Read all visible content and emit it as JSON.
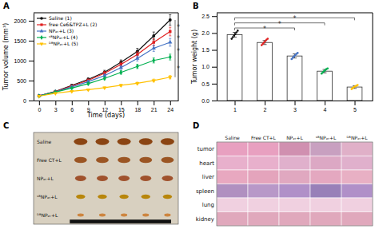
{
  "chart_data": [
    {
      "type": "line",
      "title": "A",
      "xlabel": "Time (days)",
      "ylabel": "Tumor volume (mm³)",
      "xlim": [
        -1,
        25.5
      ],
      "ylim": [
        0,
        2200
      ],
      "xticks": [
        0,
        3,
        6,
        9,
        12,
        15,
        18,
        21,
        24
      ],
      "yticks": [
        0,
        500,
        1000,
        1500,
        2000
      ],
      "legend": "upper left",
      "series": [
        {
          "name": "Saline (1)",
          "color": "#111111",
          "marker": "circle",
          "x": [
            0,
            3,
            6,
            9,
            12,
            15,
            18,
            21,
            24
          ],
          "values": [
            120,
            230,
            380,
            530,
            710,
            960,
            1230,
            1620,
            2020
          ],
          "errors": [
            8,
            18,
            28,
            38,
            48,
            58,
            78,
            98,
            130
          ]
        },
        {
          "name": "free Ce6&TPZ+L (2)",
          "color": "#e02020",
          "marker": "square",
          "x": [
            0,
            3,
            6,
            9,
            12,
            15,
            18,
            21,
            24
          ],
          "values": [
            118,
            222,
            365,
            505,
            685,
            905,
            1155,
            1460,
            1730
          ],
          "errors": [
            8,
            18,
            28,
            38,
            43,
            53,
            68,
            88,
            108
          ]
        },
        {
          "name": "NPₑₜ+L (3)",
          "color": "#4472c4",
          "marker": "triangle-up",
          "x": [
            0,
            3,
            6,
            9,
            12,
            15,
            18,
            21,
            24
          ],
          "values": [
            116,
            218,
            342,
            472,
            625,
            825,
            1055,
            1310,
            1460
          ],
          "errors": [
            8,
            16,
            23,
            33,
            38,
            48,
            63,
            78,
            98
          ]
        },
        {
          "name": "ˢᴮNPₑₜ+L (4)",
          "color": "#00b050",
          "marker": "diamond",
          "x": [
            0,
            3,
            6,
            9,
            12,
            15,
            18,
            21,
            24
          ],
          "values": [
            112,
            212,
            312,
            422,
            555,
            705,
            855,
            1005,
            1090
          ],
          "errors": [
            8,
            13,
            18,
            26,
            33,
            43,
            53,
            63,
            73
          ]
        },
        {
          "name": "ᴰᴮNPₑₜ+L (5)",
          "color": "#ffc000",
          "marker": "triangle-down",
          "x": [
            0,
            3,
            6,
            9,
            12,
            15,
            18,
            21,
            24
          ],
          "values": [
            110,
            182,
            232,
            272,
            322,
            382,
            432,
            502,
            585
          ],
          "errors": [
            7,
            11,
            16,
            18,
            20,
            26,
            30,
            36,
            42
          ]
        }
      ],
      "annotations": [
        {
          "label": "*",
          "y1": 2020,
          "y2": 1730
        },
        {
          "label": "*",
          "y1": 1730,
          "y2": 1460
        },
        {
          "label": "*",
          "y1": 1460,
          "y2": 1090
        },
        {
          "label": "*",
          "y1": 1090,
          "y2": 585
        }
      ]
    },
    {
      "type": "bar",
      "title": "B",
      "ylabel": "Tumor weight (g)",
      "xlim": [
        0.4,
        5.6
      ],
      "ylim": [
        0.0,
        2.6
      ],
      "xticks": [
        1,
        2,
        3,
        4,
        5
      ],
      "yticks": [
        {
          "value": 0.0,
          "label": "0.0"
        },
        0.5,
        {
          "value": 1.0,
          "label": "1.0"
        },
        1.5,
        {
          "value": 2.0,
          "label": "2.0"
        },
        2.5
      ],
      "color": "#ffffff",
      "x": [
        1,
        2,
        3,
        4,
        5
      ],
      "values": [
        1.95,
        1.72,
        1.32,
        0.87,
        0.4
      ],
      "errors": [
        0.07,
        0.06,
        0.06,
        0.05,
        0.04
      ],
      "colors": [
        "#111111",
        "#e02020",
        "#4472c4",
        "#00b050",
        "#ffc000"
      ],
      "points": [
        [
          1.83,
          1.88,
          1.93,
          1.97,
          2.02,
          2.07
        ],
        [
          1.64,
          1.68,
          1.72,
          1.76,
          1.8,
          1.83
        ],
        [
          1.23,
          1.27,
          1.31,
          1.34,
          1.38,
          1.41
        ],
        [
          0.8,
          0.84,
          0.87,
          0.9,
          0.93,
          0.95
        ],
        [
          0.34,
          0.37,
          0.4,
          0.42,
          0.44,
          0.46
        ]
      ],
      "annotations": [
        {
          "x1": 1,
          "x2": 5,
          "y": 2.45,
          "label": "*"
        },
        {
          "x1": 1,
          "x2": 4,
          "y": 2.3,
          "label": "*"
        },
        {
          "x1": 1,
          "x2": 3,
          "y": 2.15,
          "label": "*"
        }
      ]
    },
    {
      "type": "image",
      "title": "C",
      "color": "#d8d0c0",
      "labels": [
        "Saline",
        "Free CT+L",
        "NPₑₜ+L",
        "ˢᴮNPₑₜ+L",
        "ᴰᴮNPₑₜ+L"
      ],
      "colors": [
        "#8B4513",
        "#9B5523",
        "#A0522D",
        "#B8860B",
        "#CD853F"
      ]
    },
    {
      "type": "heatmap",
      "title": "D",
      "categories": [
        "Saline",
        "Free CT+L",
        "NPₑₜ+L",
        "ˢᴮNPₑₜ+L",
        "ᴰᴮNPₑₜ+L"
      ],
      "row_labels": [
        "tumor",
        "heart",
        "liver",
        "spleen",
        "lung",
        "kidney"
      ],
      "cells": [
        [
          "#e8a0c0",
          "#e8a0c0",
          "#d090b0",
          "#c8a0c0",
          "#e0b0c8"
        ],
        [
          "#e8b0cc",
          "#e8b0cc",
          "#e0b0cc",
          "#dca8c4",
          "#e0b0cc"
        ],
        [
          "#e8a8c0",
          "#e4a4bc",
          "#e0a8c0",
          "#e4a8c0",
          "#e8b0c4"
        ],
        [
          "#b090c0",
          "#b898c8",
          "#b090c8",
          "#9880b8",
          "#b090c8"
        ],
        [
          "#f0d0e0",
          "#f0d0e0",
          "#f0d0e0",
          "#f0d0e0",
          "#f0d0e0"
        ],
        [
          "#e0a8bc",
          "#e0a8bc",
          "#e0a8bc",
          "#e0a8bc",
          "#e0a8bc"
        ]
      ]
    }
  ]
}
